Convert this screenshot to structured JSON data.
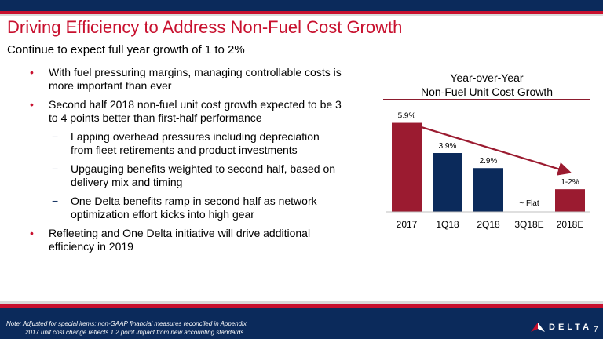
{
  "title": "Driving Efficiency to Address Non-Fuel Cost Growth",
  "subtitle": "Continue to expect full year growth of 1 to 2%",
  "bullets": [
    {
      "level": 1,
      "text": "With fuel pressuring margins, managing controllable costs is more important than ever"
    },
    {
      "level": 1,
      "text": "Second half 2018 non-fuel unit cost growth expected to be 3 to 4 points better than first-half performance"
    },
    {
      "level": 2,
      "text": "Lapping overhead pressures including depreciation from fleet retirements and product investments"
    },
    {
      "level": 2,
      "text": "Upgauging benefits weighted to second half, based on delivery mix and timing"
    },
    {
      "level": 2,
      "text": "One Delta benefits ramp in second half as network optimization effort kicks into high gear"
    },
    {
      "level": 1,
      "text": "Refleeting and One Delta initiative will drive additional efficiency in 2019"
    }
  ],
  "chart_data": {
    "type": "bar",
    "title": "Year-over-Year\nNon-Fuel Unit Cost Growth",
    "title_line1": "Year-over-Year",
    "title_line2": "Non-Fuel Unit Cost Growth",
    "categories": [
      "2017",
      "1Q18",
      "2Q18",
      "3Q18E",
      "2018E"
    ],
    "values": [
      5.9,
      3.9,
      2.9,
      0,
      1.5
    ],
    "data_labels": [
      "5.9%",
      "3.9%",
      "2.9%",
      "~ Flat",
      "1-2%"
    ],
    "bar_colors": [
      "#9b1b30",
      "#0b2a5b",
      "#0b2a5b",
      "#0b2a5b",
      "#9b1b30"
    ],
    "ylim": [
      0,
      6.5
    ],
    "grid": false,
    "legend": "none",
    "trend_arrow": {
      "from_category": "2017",
      "to_category": "2018E",
      "color": "#9b1b30"
    }
  },
  "footer": {
    "note_line1": "Note: Adjusted for special items; non-GAAP financial measures reconciled in Appendix",
    "note_line2": "2017 unit cost change reflects 1.2 point impact from new accounting standards",
    "logo_text": "DELTA",
    "page_number": "7"
  },
  "colors": {
    "navy": "#0b2a5b",
    "red": "#c8102e",
    "maroon": "#9b1b30"
  }
}
